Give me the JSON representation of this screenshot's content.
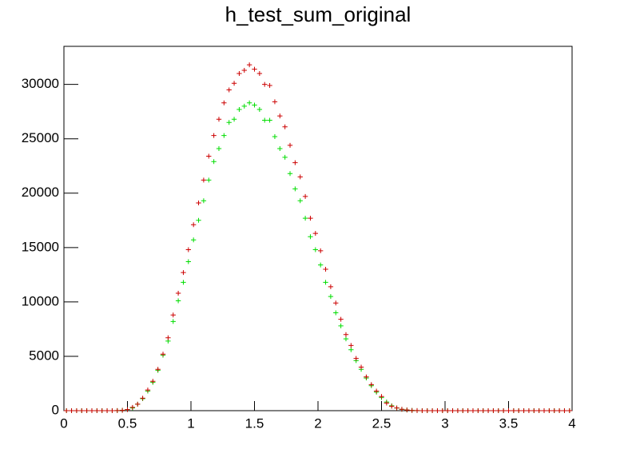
{
  "chart_data": {
    "type": "histogram",
    "title": "h_test_sum_original",
    "bins": [
      0,
      0.04,
      0.08,
      0.12,
      0.16,
      0.2,
      0.24,
      0.28,
      0.32,
      0.36,
      0.4,
      0.44,
      0.48,
      0.52,
      0.56,
      0.6,
      0.64,
      0.68,
      0.72,
      0.76,
      0.8,
      0.84,
      0.88,
      0.92,
      0.96,
      1,
      1.04,
      1.08,
      1.12,
      1.16,
      1.2,
      1.24,
      1.28,
      1.32,
      1.36,
      1.4,
      1.44,
      1.48,
      1.52,
      1.56,
      1.6,
      1.64,
      1.68,
      1.72,
      1.76,
      1.8,
      1.84,
      1.88,
      1.92,
      1.96,
      2,
      2.04,
      2.08,
      2.12,
      2.16,
      2.2,
      2.24,
      2.28,
      2.32,
      2.36,
      2.4,
      2.44,
      2.48,
      2.52,
      2.56,
      2.6,
      2.64,
      2.68,
      2.72,
      2.76,
      2.8,
      2.84,
      2.88,
      2.92,
      2.96,
      3,
      3.04,
      3.08,
      3.12,
      3.16,
      3.2,
      3.24,
      3.28,
      3.32,
      3.36,
      3.4,
      3.44,
      3.48,
      3.52,
      3.56,
      3.6,
      3.64,
      3.68,
      3.72,
      3.76,
      3.8,
      3.84,
      3.88,
      3.92,
      3.96,
      4
    ],
    "series": [
      {
        "color": "#cc0000",
        "values": [
          0,
          0,
          0,
          0,
          0,
          0,
          0,
          0,
          0,
          0,
          5,
          30,
          100,
          300,
          600,
          1150,
          1900,
          2700,
          3800,
          5200,
          6700,
          8800,
          10800,
          12700,
          14800,
          17100,
          19100,
          21200,
          23400,
          25300,
          26800,
          28300,
          29500,
          30100,
          31000,
          31300,
          31800,
          31400,
          31000,
          30000,
          29900,
          28400,
          27100,
          26100,
          24400,
          22800,
          21500,
          19700,
          17700,
          16300,
          14700,
          13000,
          11400,
          9900,
          8400,
          7000,
          6000,
          4800,
          4000,
          3100,
          2400,
          1800,
          1300,
          700,
          400,
          250,
          130,
          60,
          20,
          5,
          0,
          0,
          0,
          0,
          0,
          0,
          0,
          0,
          0,
          0,
          0,
          0,
          0,
          0,
          0,
          0,
          0,
          0,
          0,
          0,
          0,
          0,
          0,
          0,
          0,
          0,
          0,
          0,
          0,
          0
        ]
      },
      {
        "color": "#00dd00",
        "values": [
          0,
          0,
          0,
          0,
          0,
          0,
          0,
          0,
          0,
          0,
          10,
          40,
          100,
          250,
          600,
          1100,
          1800,
          2600,
          3700,
          5100,
          6400,
          8200,
          10100,
          11800,
          13700,
          15700,
          17500,
          19300,
          21200,
          22900,
          24100,
          25300,
          26500,
          26800,
          27700,
          28000,
          28300,
          28100,
          27700,
          26700,
          26700,
          25200,
          24100,
          23300,
          21800,
          20400,
          19300,
          17700,
          16000,
          14800,
          13400,
          11800,
          10500,
          9000,
          7800,
          6600,
          5600,
          4600,
          3800,
          3000,
          2300,
          1700,
          1200,
          800,
          450,
          250,
          120,
          60,
          25,
          10,
          3,
          0,
          0,
          0,
          0,
          0,
          0,
          0,
          0,
          0,
          0,
          0,
          0,
          0,
          0,
          0,
          0,
          0,
          0,
          0,
          0,
          0,
          0,
          0,
          0,
          0,
          0,
          0,
          0,
          0
        ]
      }
    ],
    "xlim": [
      0,
      4
    ],
    "xticks": [
      0,
      {
        "value": 0.5,
        "label": "0.5"
      },
      1,
      {
        "value": 1.5,
        "label": "1.5"
      },
      2,
      {
        "value": 2.5,
        "label": "2.5"
      },
      3,
      {
        "value": 3.5,
        "label": "3.5"
      },
      4
    ],
    "ylim": [
      0,
      33500
    ],
    "yticks": [
      0,
      5000,
      10000,
      15000,
      20000,
      25000,
      30000
    ]
  }
}
